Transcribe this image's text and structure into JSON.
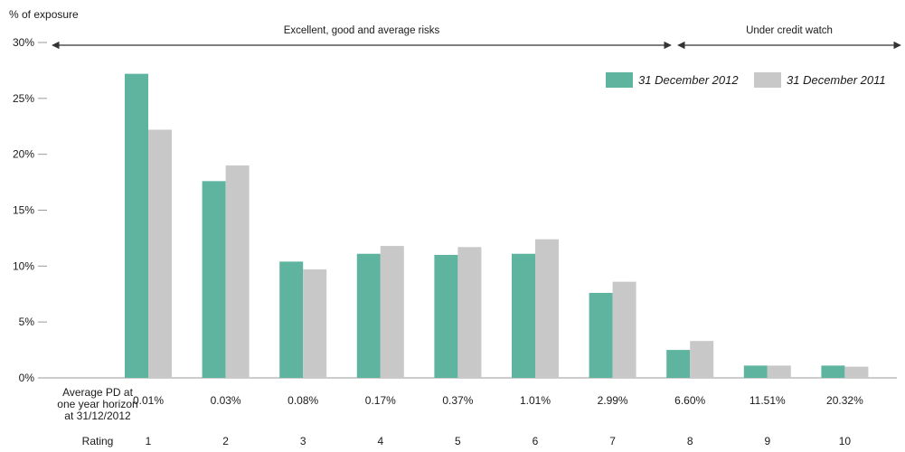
{
  "chart_data": {
    "type": "bar",
    "ylabel": "% of exposure",
    "ylim": [
      0,
      30
    ],
    "yticks": [
      "0%",
      "5%",
      "10%",
      "15%",
      "20%",
      "25%",
      "30%"
    ],
    "grid": false,
    "legend_position": "top-right",
    "categories": [
      "1",
      "2",
      "3",
      "4",
      "5",
      "6",
      "7",
      "8",
      "9",
      "10"
    ],
    "category_row_label": "Rating",
    "pd_row_label": [
      "Average PD at",
      "one year horizon",
      "at 31/12/2012"
    ],
    "pd_values": [
      "0.01%",
      "0.03%",
      "0.08%",
      "0.17%",
      "0.37%",
      "1.01%",
      "2.99%",
      "6.60%",
      "11.51%",
      "20.32%"
    ],
    "series": [
      {
        "name": "31 December 2012",
        "color": "#5fb4a0",
        "values": [
          27.2,
          17.6,
          10.4,
          11.1,
          11.0,
          11.1,
          7.6,
          2.5,
          1.1,
          1.1
        ]
      },
      {
        "name": "31 December 2011",
        "color": "#c8c8c8",
        "values": [
          22.2,
          19.0,
          9.7,
          11.8,
          11.7,
          12.4,
          8.6,
          3.3,
          1.1,
          1.0
        ]
      }
    ],
    "bands": [
      {
        "label": "Excellent, good and average risks",
        "from_category": "1",
        "to_category": "7"
      },
      {
        "label": "Under credit watch",
        "from_category": "8",
        "to_category": "10"
      }
    ]
  }
}
